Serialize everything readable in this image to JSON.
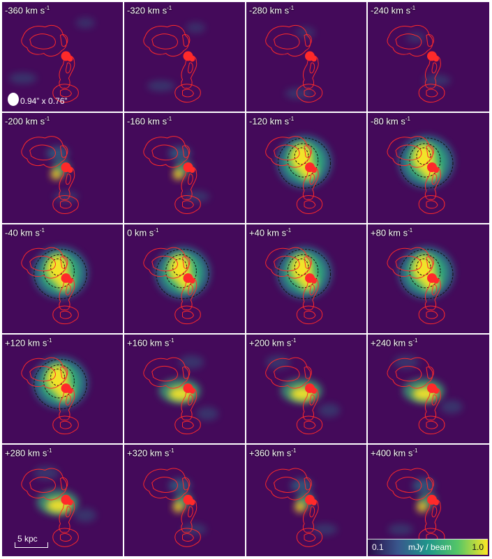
{
  "panels": [
    {
      "vel": "-360 km s",
      "emission": "none",
      "beam_label": "0.94” x 0.76”"
    },
    {
      "vel": "-320 km s",
      "emission": "none"
    },
    {
      "vel": "-280 km s",
      "emission": "none"
    },
    {
      "vel": "-240 km s",
      "emission": "none"
    },
    {
      "vel": "-200 km s",
      "emission": "weak"
    },
    {
      "vel": "-160 km s",
      "emission": "weak"
    },
    {
      "vel": "-120 km s",
      "emission": "strong"
    },
    {
      "vel": "-80 km s",
      "emission": "strong"
    },
    {
      "vel": "-40 km s",
      "emission": "strong"
    },
    {
      "vel": "0 km s",
      "emission": "strong"
    },
    {
      "vel": "+40 km s",
      "emission": "strong"
    },
    {
      "vel": "+80 km s",
      "emission": "strong"
    },
    {
      "vel": "+120 km s",
      "emission": "strong"
    },
    {
      "vel": "+160 km s",
      "emission": "medium"
    },
    {
      "vel": "+200 km s",
      "emission": "medium"
    },
    {
      "vel": "+240 km s",
      "emission": "medium"
    },
    {
      "vel": "+280 km s",
      "emission": "medium",
      "scalebar_label": "5 kpc"
    },
    {
      "vel": "+320 km s",
      "emission": "weak"
    },
    {
      "vel": "+360 km s",
      "emission": "weak"
    },
    {
      "vel": "+400 km s",
      "emission": "weak"
    }
  ],
  "superscript": "-1",
  "colorbar": {
    "min": "0.1",
    "unit": "mJy / beam",
    "max": "1.0"
  },
  "colors": {
    "background": "#440a5a",
    "contour_red": "#ff2a2a",
    "contour_black": "#111111",
    "emission_yellow": "#fde725",
    "emission_green": "#35b779",
    "emission_teal": "#26828e"
  }
}
